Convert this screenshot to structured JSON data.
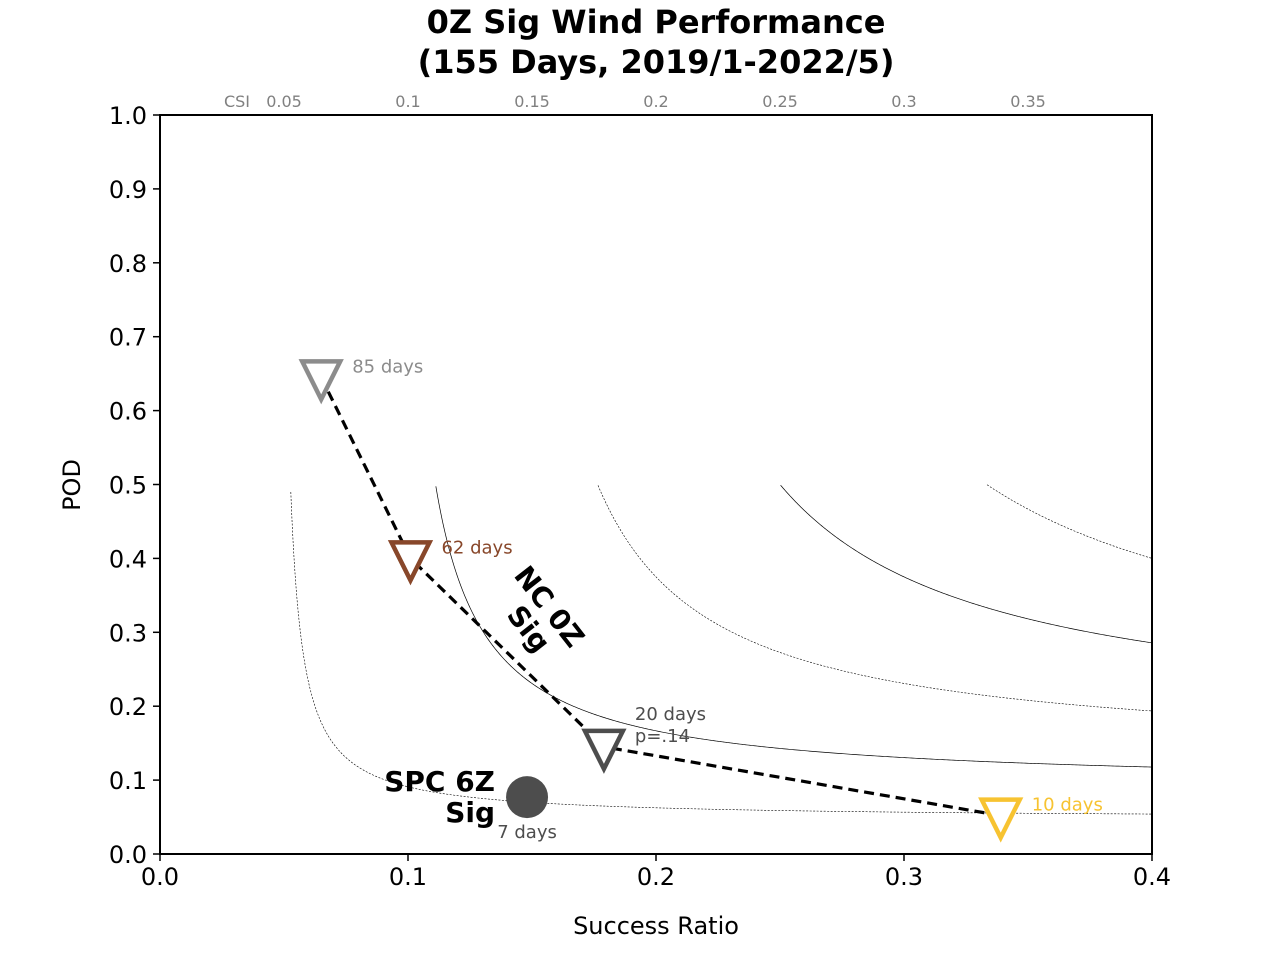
{
  "chart_data": {
    "type": "scatter",
    "title_lines": [
      "0Z Sig Wind Performance",
      "(155 Days, 2019/1-2022/5)"
    ],
    "xlabel": "Success Ratio",
    "ylabel": "POD",
    "xlim": [
      0.0,
      0.4
    ],
    "ylim": [
      0.0,
      1.0
    ],
    "x_ticks": [
      0.0,
      0.1,
      0.2,
      0.3,
      0.4
    ],
    "x_tick_labels": [
      "0.0",
      "0.1",
      "0.2",
      "0.3",
      "0.4"
    ],
    "y_ticks": [
      0.0,
      0.1,
      0.2,
      0.3,
      0.4,
      0.5,
      0.6,
      0.7,
      0.8,
      0.9,
      1.0
    ],
    "y_tick_labels": [
      "0.0",
      "0.1",
      "0.2",
      "0.3",
      "0.4",
      "0.5",
      "0.6",
      "0.7",
      "0.8",
      "0.9",
      "1.0"
    ],
    "csi_prefix": "CSI",
    "csi_contours": [
      {
        "value": 0.05,
        "label": "0.05",
        "style": "dotted"
      },
      {
        "value": 0.1,
        "label": "0.1",
        "style": "solid"
      },
      {
        "value": 0.15,
        "label": "0.15",
        "style": "dotted"
      },
      {
        "value": 0.2,
        "label": "0.2",
        "style": "solid"
      },
      {
        "value": 0.25,
        "label": "0.25",
        "style": "dotted"
      },
      {
        "value": 0.3,
        "label": "0.3",
        "style": "solid"
      },
      {
        "value": 0.35,
        "label": "0.35",
        "style": "dotted"
      }
    ],
    "series": [
      {
        "name": "NC 0Z Sig",
        "marker": "triangle-down",
        "connect": "dashed",
        "points": [
          {
            "x": 0.065,
            "y": 0.645,
            "label": "85 days",
            "color": "#8c8c8c"
          },
          {
            "x": 0.101,
            "y": 0.4,
            "label": "62 days",
            "color": "#88472a"
          },
          {
            "x": 0.179,
            "y": 0.145,
            "label": "20 days",
            "label2": "p=.14",
            "color": "#4d4d4d"
          },
          {
            "x": 0.339,
            "y": 0.052,
            "label": "10 days",
            "color": "#f7c331"
          }
        ]
      },
      {
        "name": "SPC 6Z Sig",
        "marker": "circle",
        "points": [
          {
            "x": 0.148,
            "y": 0.077,
            "label": "7 days",
            "color": "#4d4d4d"
          }
        ]
      }
    ],
    "annotations": {
      "nc_label_lines": [
        "NC 0Z",
        "Sig"
      ],
      "spc_label_lines": [
        "SPC 6Z",
        "Sig"
      ]
    }
  }
}
